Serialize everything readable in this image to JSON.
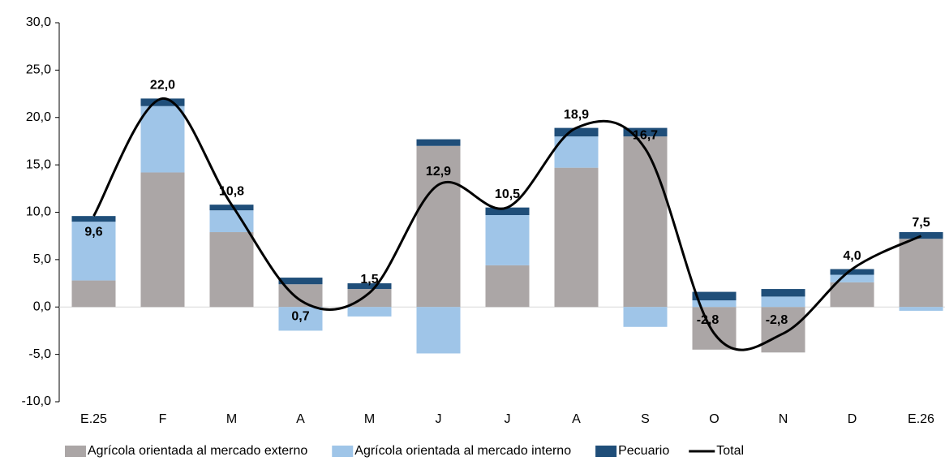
{
  "chart_data": {
    "type": "stacked-bar-line",
    "categories": [
      "E.25",
      "F",
      "M",
      "A",
      "M",
      "J",
      "J",
      "A",
      "S",
      "O",
      "N",
      "D",
      "E.26"
    ],
    "series": [
      {
        "name": "Agrícola orientada al mercado externo",
        "color": "#aba6a6",
        "values": [
          2.8,
          14.2,
          7.9,
          2.4,
          1.9,
          17.0,
          4.4,
          14.7,
          18.0,
          -4.5,
          -4.8,
          2.6,
          7.2
        ]
      },
      {
        "name": "Agrícola orientada al mercado interno",
        "color": "#9fc5e8",
        "values": [
          6.2,
          7.0,
          2.3,
          -2.5,
          -1.0,
          -4.9,
          5.3,
          3.3,
          -2.1,
          0.7,
          1.1,
          0.8,
          -0.4
        ]
      },
      {
        "name": "Pecuario",
        "color": "#1f4e79",
        "values": [
          0.6,
          0.8,
          0.6,
          0.7,
          0.6,
          0.7,
          0.8,
          0.9,
          0.9,
          0.9,
          0.8,
          0.6,
          0.7
        ]
      },
      {
        "name": "Total",
        "color": "#000000",
        "type": "line",
        "values": [
          9.6,
          22.0,
          10.8,
          0.7,
          1.5,
          12.9,
          10.5,
          18.9,
          16.7,
          -2.8,
          -2.8,
          4.0,
          7.5
        ],
        "value_labels": [
          "9,6",
          "22,0",
          "10,8",
          "0,7",
          "1,5",
          "12,9",
          "10,5",
          "18,9",
          "16,7",
          "-2,8",
          "-2,8",
          "4,0",
          "7,5"
        ]
      }
    ],
    "ylim": [
      -10,
      30
    ],
    "yticks": [
      {
        "value": -10,
        "label": "-10,0"
      },
      {
        "value": -5,
        "label": "-5,0"
      },
      {
        "value": 0,
        "label": "0,0"
      },
      {
        "value": 5,
        "label": "5,0"
      },
      {
        "value": 10,
        "label": "10,0"
      },
      {
        "value": 15,
        "label": "15,0"
      },
      {
        "value": 20,
        "label": "20,0"
      },
      {
        "value": 25,
        "label": "25,0"
      },
      {
        "value": 30,
        "label": "30,0"
      }
    ],
    "legend": "bottom"
  }
}
